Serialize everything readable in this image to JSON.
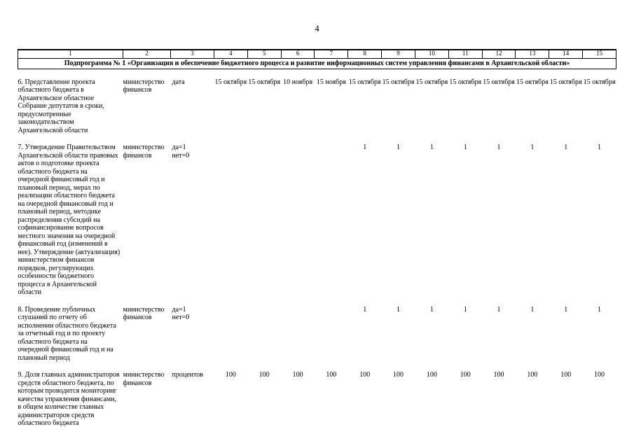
{
  "page": {
    "number": "4"
  },
  "table": {
    "column_numbers": [
      "1",
      "2",
      "3",
      "4",
      "5",
      "6",
      "7",
      "8",
      "9",
      "10",
      "11",
      "12",
      "13",
      "14",
      "15"
    ],
    "subprogram_title": "Подпрограмма № 1 «Организация и обеспечение бюджетного процесса и развитие информационных систем управления финансами в Архангельской области»",
    "rows": [
      {
        "activity": "6. Представление проекта областного бюджета в Архангельское областное Собрание депутатов в сроки, предусмотренные законодательством Архангельской области",
        "executor": "министерство финансов",
        "unit": "дата",
        "values": [
          "15 октября",
          "15 октября",
          "10 ноября",
          "15 ноября",
          "15 октября",
          "15 октября",
          "15 октября",
          "15 октября",
          "15 октября",
          "15 октября",
          "15 октября",
          "15 октября"
        ]
      },
      {
        "activity": "7. Утверждение Правительством Архангельской области правовых актов о подготовке проекта областного бюджета на очередной финансовый год и плановый период, мерах по реализации областного бюджета на очередной финансовый год и плановый период, методике распределения субсидий на софинансирование вопросов местного значения на очередной финансовый год (изменений в нее). Утверждение (актуализация) министерством финансов порядков, регулирующих особенности бюджетного процесса в Архангельской области",
        "executor": "министерство финансов",
        "unit": "да=1\nнет=0",
        "values": [
          "",
          "",
          "",
          "",
          "1",
          "1",
          "1",
          "1",
          "1",
          "1",
          "1",
          "1"
        ]
      },
      {
        "activity": "8. Проведение публичных слушаний по отчету об исполнении областного бюджета за отчетный год и по проекту областного бюджета на очередной финансовый год и на плановый период",
        "executor": "министерство финансов",
        "unit": "да=1\nнет=0",
        "values": [
          "",
          "",
          "",
          "",
          "1",
          "1",
          "1",
          "1",
          "1",
          "1",
          "1",
          "1"
        ]
      },
      {
        "activity": "9. Доля главных администраторов средств областного бюджета, по которым проводится мониторинг качества управления финансами, в общем количестве главных администраторов средств областного бюджета",
        "executor": "министерство финансов",
        "unit": "процентов",
        "values": [
          "100",
          "100",
          "100",
          "100",
          "100",
          "100",
          "100",
          "100",
          "100",
          "100",
          "100",
          "100"
        ]
      }
    ]
  }
}
